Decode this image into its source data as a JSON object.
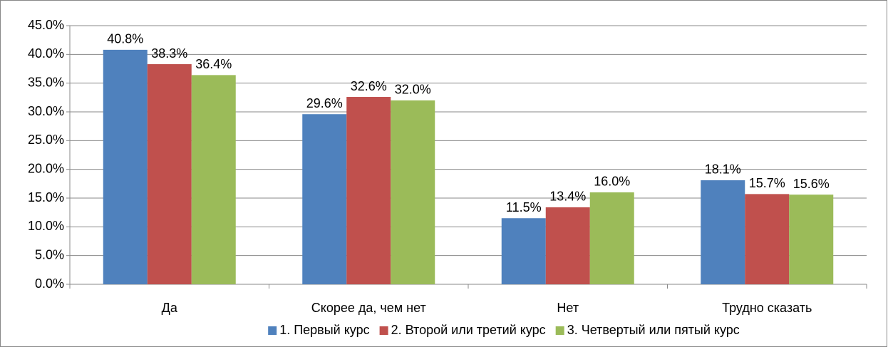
{
  "chart_data": {
    "type": "bar",
    "categories": [
      "Да",
      "Скорее да, чем нет",
      "Нет",
      "Трудно сказать"
    ],
    "series": [
      {
        "name": "1. Первый курс",
        "color": "#4f81bd",
        "values": [
          40.8,
          29.6,
          11.5,
          18.1
        ],
        "value_labels": [
          "40.8%",
          "29.6%",
          "11.5%",
          "18.1%"
        ]
      },
      {
        "name": "2. Второй или третий курс",
        "color": "#c0504d",
        "values": [
          38.3,
          32.6,
          13.4,
          15.7
        ],
        "value_labels": [
          "38.3%",
          "32.6%",
          "13.4%",
          "15.7%"
        ]
      },
      {
        "name": "3. Четвертый или пятый курс",
        "color": "#9bbb59",
        "values": [
          36.4,
          32.0,
          16.0,
          15.6
        ],
        "value_labels": [
          "36.4%",
          "32.0%",
          "16.0%",
          "15.6%"
        ]
      }
    ],
    "ylim": [
      0,
      45
    ],
    "yticks": [
      {
        "value": 0,
        "label": "0.0%"
      },
      {
        "value": 5,
        "label": "5.0%"
      },
      {
        "value": 10,
        "label": "10.0%"
      },
      {
        "value": 15,
        "label": "15.0%"
      },
      {
        "value": 20,
        "label": "20.0%"
      },
      {
        "value": 25,
        "label": "25.0%"
      },
      {
        "value": 30,
        "label": "30.0%"
      },
      {
        "value": 35,
        "label": "35.0%"
      },
      {
        "value": 40,
        "label": "40.0%"
      },
      {
        "value": 45,
        "label": "45.0%"
      }
    ],
    "grid": true,
    "legend": "bottom"
  }
}
